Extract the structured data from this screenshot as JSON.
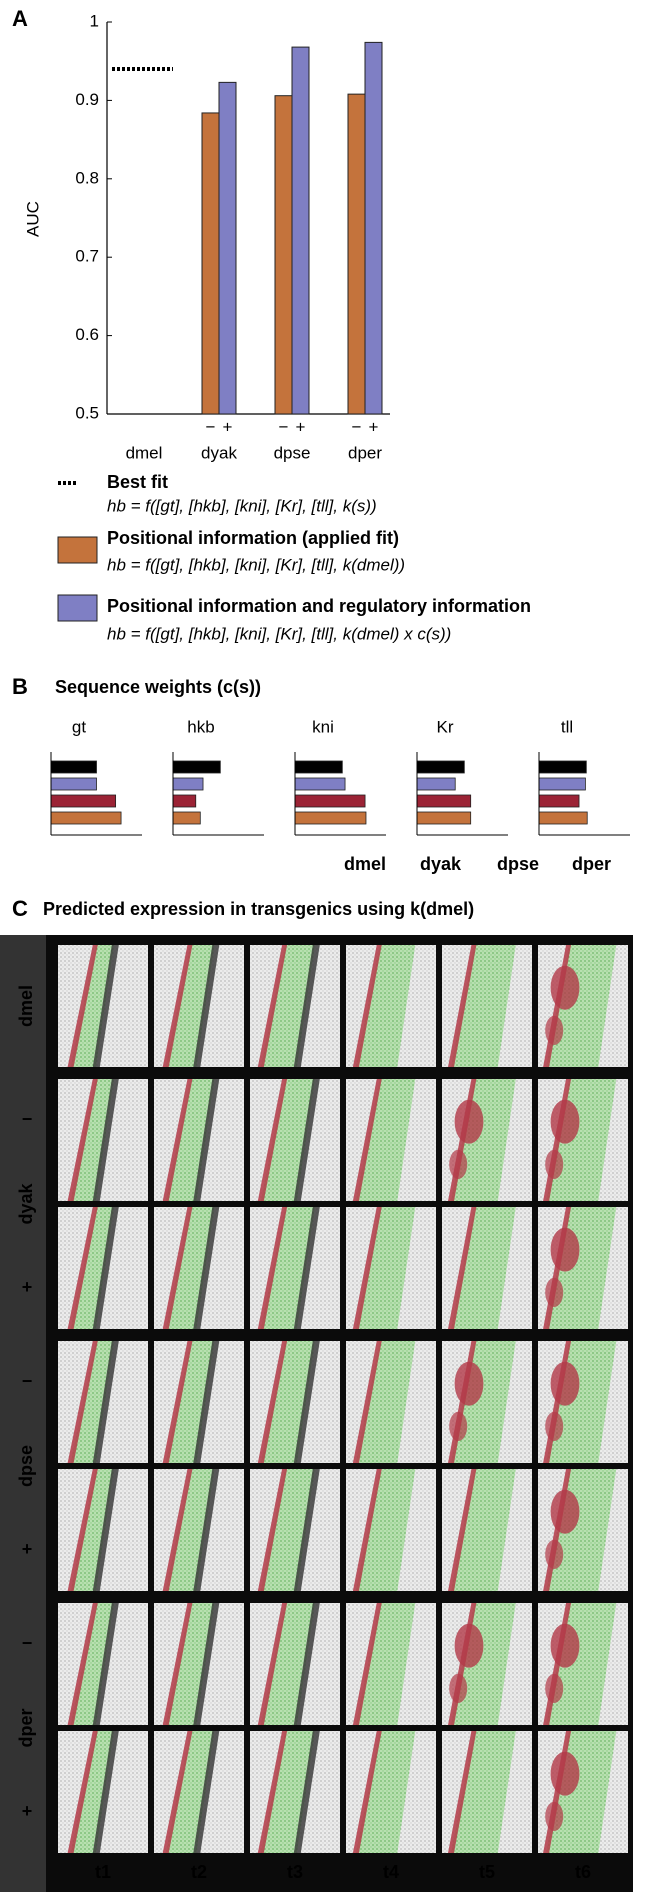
{
  "chart_data": [
    {
      "type": "bar",
      "panel_label": "A",
      "ylabel": "AUC",
      "categories": [
        "dmel",
        "dyak",
        "dpse",
        "dper"
      ],
      "series": [
        {
          "name": "−",
          "color": "#c4733c",
          "values": [
            null,
            0.884,
            0.906,
            0.908
          ],
          "legend_label": "Positional information (applied fit)",
          "formula": "hb = f([gt], [hkb], [kni], [Kr], [tll], k(dmel))"
        },
        {
          "name": "+",
          "color": "#7f7fc4",
          "values": [
            null,
            0.923,
            0.968,
            0.974
          ],
          "legend_label": "Positional information and regulatory information",
          "formula": "hb = f([gt], [hkb], [kni], [Kr], [tll], k(dmel) x c(s))"
        }
      ],
      "best_fit": {
        "label": "Best fit",
        "value": 0.94,
        "color": "#000000",
        "formula": "hb = f([gt], [hkb], [kni], [Kr], [tll], k(s))"
      },
      "ylim": [
        0.5,
        1
      ],
      "yticks": [
        0.5,
        0.6,
        0.7,
        0.8,
        0.9,
        1
      ]
    },
    {
      "type": "barh",
      "panel_label": "B",
      "title": "Sequence weights (c(s))",
      "categories": [
        "gt",
        "hkb",
        "kni",
        "Kr",
        "tll"
      ],
      "series": [
        {
          "name": "dmel",
          "color": "#000000",
          "values": [
            0.5,
            0.52,
            0.52,
            0.52,
            0.52
          ]
        },
        {
          "name": "dyak",
          "color": "#7f7fc4",
          "values": [
            0.5,
            0.33,
            0.55,
            0.42,
            0.51
          ]
        },
        {
          "name": "dpse",
          "color": "#9b2335",
          "values": [
            0.71,
            0.25,
            0.77,
            0.59,
            0.44
          ]
        },
        {
          "name": "dper",
          "color": "#c4733c",
          "values": [
            0.77,
            0.3,
            0.78,
            0.59,
            0.53
          ]
        }
      ],
      "xlim": [
        0,
        1
      ]
    }
  ],
  "panel_c": {
    "panel_label": "C",
    "title": "Predicted expression in transgenics using k(dmel)",
    "groups": [
      {
        "label": "dmel",
        "signs": []
      },
      {
        "label": "dyak",
        "signs": [
          "−",
          "+"
        ]
      },
      {
        "label": "dpse",
        "signs": [
          "−",
          "+"
        ]
      },
      {
        "label": "dper",
        "signs": [
          "−",
          "+"
        ]
      }
    ],
    "columns": [
      "t1",
      "t2",
      "t3",
      "t4",
      "t5",
      "t6"
    ]
  }
}
